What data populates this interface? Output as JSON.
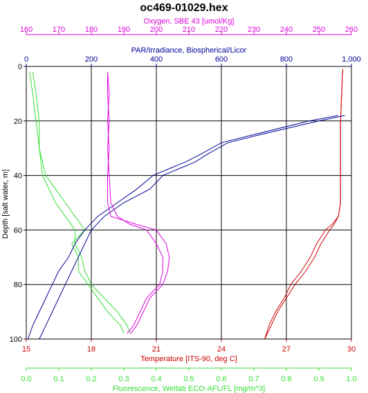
{
  "chart_data": {
    "type": "line",
    "title": "oc469-01029.hex",
    "ylabel": "Depth [salt water, m]",
    "ylim": [
      0,
      100
    ],
    "y_inverted": true,
    "yticks": [
      "0",
      "20",
      "40",
      "60",
      "80",
      "100"
    ],
    "grid": true,
    "axes": {
      "temperature": {
        "label": "Temperature [ITS-90, deg C]",
        "position": "bottom",
        "color": "#cc0000",
        "range": [
          15,
          30
        ],
        "ticks": [
          "15",
          "18",
          "21",
          "24",
          "27",
          "30"
        ]
      },
      "fluorescence": {
        "label": "Fluorescence, Wetlab ECO-AFL/FL [mg/m^3]",
        "position": "bottom-outer",
        "color": "#33dd33",
        "range": [
          0,
          1
        ],
        "ticks": [
          "0.0",
          "0.1",
          "0.2",
          "0.3",
          "0.4",
          "0.5",
          "0.6",
          "0.7",
          "0.8",
          "0.9",
          "1.0"
        ]
      },
      "par": {
        "label": "PAR/Irradiance, Biospherical/Licor",
        "position": "top",
        "color": "#000099",
        "range": [
          0,
          1000
        ],
        "ticks": [
          "0",
          "200",
          "400",
          "600",
          "800",
          "1,000"
        ]
      },
      "oxygen": {
        "label": "Oxygen, SBE 43 [umol/Kg]",
        "position": "top-outer",
        "color": "#dd00dd",
        "range": [
          160,
          260
        ],
        "ticks": [
          "160",
          "170",
          "180",
          "190",
          "200",
          "210",
          "220",
          "230",
          "240",
          "250",
          "260"
        ]
      }
    },
    "series": [
      {
        "axis": "temperature",
        "color": "#cc0000",
        "depth": [
          1,
          10,
          20,
          30,
          40,
          50,
          55,
          58,
          60,
          65,
          70,
          75,
          80,
          85,
          90,
          95,
          100
        ],
        "down": [
          29.6,
          29.55,
          29.5,
          29.5,
          29.5,
          29.5,
          29.4,
          29.2,
          29.0,
          28.6,
          28.3,
          27.9,
          27.4,
          27.0,
          26.6,
          26.3,
          26.0
        ],
        "up": [
          29.6,
          29.55,
          29.5,
          29.5,
          29.5,
          29.5,
          29.4,
          29.1,
          28.8,
          28.4,
          28.1,
          27.7,
          27.2,
          26.9,
          26.5,
          26.2,
          26.0
        ]
      },
      {
        "axis": "fluorescence",
        "color": "#33dd33",
        "depth": [
          2,
          10,
          20,
          30,
          40,
          45,
          50,
          55,
          60,
          65,
          70,
          75,
          80,
          85,
          90,
          95,
          98
        ],
        "down": [
          0.02,
          0.03,
          0.04,
          0.04,
          0.05,
          0.07,
          0.09,
          0.12,
          0.15,
          0.15,
          0.17,
          0.18,
          0.2,
          0.24,
          0.28,
          0.31,
          0.32
        ],
        "up": [
          0.01,
          0.02,
          0.03,
          0.04,
          0.06,
          0.09,
          0.12,
          0.15,
          0.18,
          0.14,
          0.16,
          0.16,
          0.19,
          0.22,
          0.25,
          0.29,
          0.3
        ]
      },
      {
        "axis": "par",
        "color": "#000099",
        "depth": [
          18,
          20,
          25,
          28,
          32,
          35,
          40,
          45,
          50,
          55,
          60,
          65,
          70,
          75,
          80,
          85,
          90,
          95,
          100
        ],
        "down": [
          980,
          900,
          720,
          620,
          560,
          520,
          420,
          380,
          300,
          240,
          200,
          180,
          160,
          140,
          120,
          100,
          80,
          60,
          40
        ],
        "up": [
          960,
          870,
          700,
          600,
          540,
          490,
          390,
          340,
          280,
          220,
          180,
          150,
          130,
          100,
          80,
          60,
          40,
          20,
          5
        ]
      },
      {
        "axis": "oxygen",
        "color": "#dd00dd",
        "depth": [
          2,
          10,
          20,
          30,
          40,
          50,
          55,
          58,
          60,
          65,
          70,
          75,
          80,
          85,
          90,
          95,
          98
        ],
        "down": [
          185,
          185.5,
          185,
          185.5,
          185,
          185,
          186,
          194,
          200,
          203,
          204,
          203.5,
          202,
          198,
          196,
          194,
          192
        ],
        "up": [
          185,
          185,
          185.5,
          185,
          185.5,
          186,
          188,
          192,
          197,
          200,
          202,
          202,
          201,
          197,
          195,
          193,
          191
        ]
      }
    ]
  }
}
